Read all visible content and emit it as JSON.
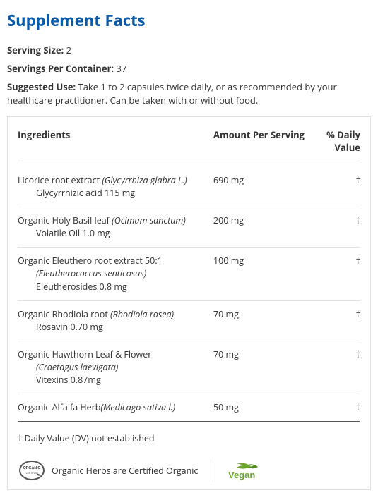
{
  "title": "Supplement Facts",
  "serving_size": {
    "label": "Serving Size:",
    "value": "2"
  },
  "servings_per_container": {
    "label": "Servings Per Container:",
    "value": "37"
  },
  "suggested_use": {
    "label": "Suggested Use:",
    "text": "Take 1 to 2 capsules twice daily, or as recommended by your healthcare practitioner. Can be taken with or without food."
  },
  "table": {
    "headers": {
      "ingredients": "Ingredients",
      "amount": "Amount Per Serving",
      "dv": "% Daily Value"
    },
    "rows": [
      {
        "name": "Licorice root extract ",
        "latin": "(Glycyrrhiza glabra L.)",
        "sub1": "Glycyrrhizic acid 115 mg",
        "sub2": "",
        "amount": "690 mg",
        "dv": "†"
      },
      {
        "name": "Organic Holy Basil leaf ",
        "latin": "(Ocimum sanctum)",
        "sub1": "Volatile Oil 1.0 mg",
        "sub2": "",
        "amount": "200 mg",
        "dv": "†"
      },
      {
        "name": "Organic Eleuthero root extract 50:1",
        "latin": "",
        "sub1_italic": "(Eleutherococcus senticosus)",
        "sub2": "Eleutherosides 0.8 mg",
        "amount": "100 mg",
        "dv": "†"
      },
      {
        "name": "Organic Rhodiola root ",
        "latin": "(Rhodiola rosea)",
        "sub1": "Rosavin 0.70 mg",
        "sub2": "",
        "amount": "70 mg",
        "dv": "†"
      },
      {
        "name": "Organic Hawthorn Leaf & Flower",
        "latin": "",
        "sub1_italic": "(Craetagus laevigata)",
        "sub2": "Vitexins 0.87mg",
        "amount": "70 mg",
        "dv": "†"
      },
      {
        "name": "Organic Alfalfa Herb",
        "latin": "(Medicago sativa l.)",
        "sub1": "",
        "sub2": "",
        "amount": "50 mg",
        "dv": "†"
      }
    ]
  },
  "footnote": "† Daily Value (DV) not established",
  "cert": {
    "organic_text": "Organic Herbs are Certified Organic",
    "vegan_text": "Vegan"
  },
  "colors": {
    "title": "#0a5aa8",
    "border": "#e0e0e0",
    "row_border": "#e2e2e2",
    "text": "#333333",
    "vegan_green": "#6aa52c",
    "organic_grey": "#6e6e6e"
  }
}
